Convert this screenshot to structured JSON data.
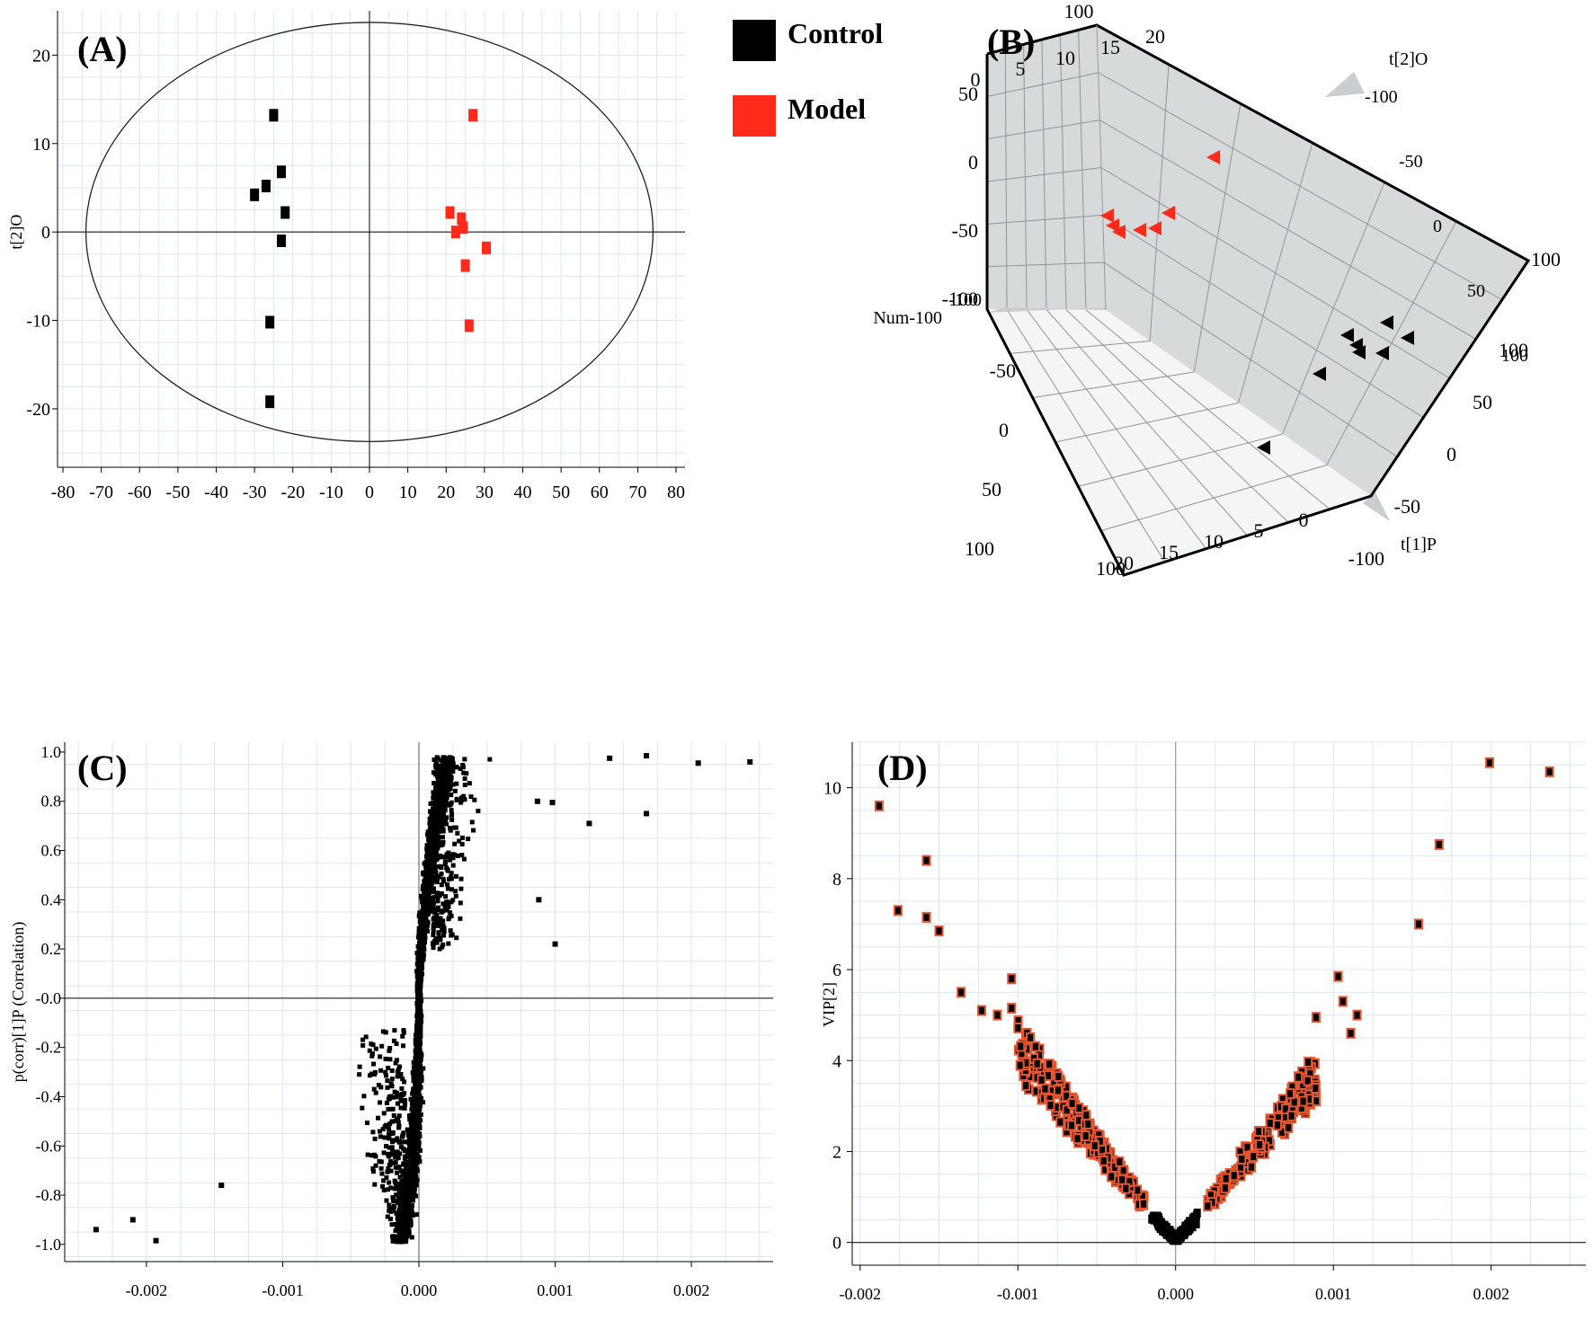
{
  "colors": {
    "control": "#000000",
    "model": "#ff2a1a",
    "vip_edge": "#e8552e",
    "grid": "#dfe6ee",
    "plane": "#d6dadb"
  },
  "panels": {
    "A": {
      "label": "(A)",
      "legend": [
        {
          "name": "Control",
          "color": "#000000"
        },
        {
          "name": "Model",
          "color": "#ff2a1a"
        }
      ]
    },
    "B": {
      "label": "(B)",
      "axis_labels": {
        "t2o": "t[2]O",
        "t1p": "t[1]P",
        "num": "Num"
      }
    },
    "C": {
      "label": "(C)"
    },
    "D": {
      "label": "(D)"
    }
  },
  "chart_data": [
    {
      "panel": "A",
      "type": "scatter",
      "title": "",
      "xlabel": "",
      "ylabel": "t[2]O",
      "xlim": [
        -80,
        80
      ],
      "ylim": [
        -26,
        24
      ],
      "x_ticks": [
        -80,
        -70,
        -60,
        -50,
        -40,
        -30,
        -20,
        -10,
        0,
        10,
        20,
        30,
        40,
        50,
        60,
        70,
        80
      ],
      "y_ticks": [
        -20,
        -10,
        0,
        10,
        20
      ],
      "ellipse": {
        "center": [
          0,
          0
        ],
        "rx": 74,
        "ry": 23.7
      },
      "series": [
        {
          "name": "Control",
          "color": "#000000",
          "points": [
            [
              -25,
              13.2
            ],
            [
              -23,
              6.8
            ],
            [
              -27,
              5.2
            ],
            [
              -30,
              4.2
            ],
            [
              -22,
              2.2
            ],
            [
              -23,
              -1.0
            ],
            [
              -26,
              -10.2
            ],
            [
              -26,
              -19.2
            ]
          ]
        },
        {
          "name": "Model",
          "color": "#ff2a1a",
          "points": [
            [
              27,
              13.2
            ],
            [
              21,
              2.2
            ],
            [
              24,
              1.5
            ],
            [
              24.5,
              0.5
            ],
            [
              22.5,
              0.0
            ],
            [
              30.5,
              -1.8
            ],
            [
              25,
              -3.8
            ],
            [
              26,
              -10.6
            ]
          ]
        }
      ]
    },
    {
      "panel": "B",
      "type": "scatter",
      "title": "",
      "axes": [
        "t[1]P",
        "t[2]O",
        "Num"
      ],
      "t2o_ticks": [
        "-100",
        "-50",
        "0",
        "50",
        "100"
      ],
      "t1p_ticks": [
        "-100",
        "-50",
        "0",
        "50",
        "100"
      ],
      "num_ticks": [
        "0",
        "5",
        "10",
        "15",
        "20"
      ],
      "top_left_ticks": [
        "50",
        "0",
        "-50",
        "-100"
      ],
      "lower_left_ticks": [
        "-50",
        "0",
        "50",
        "100"
      ],
      "corner_labels": {
        "top": "100",
        "num_end": "-100",
        "num_label_end": "-100",
        "right": "100",
        "bottom": "100"
      },
      "series": [
        {
          "name": "Model",
          "color": "#ff2a1a",
          "count": 7
        },
        {
          "name": "Control",
          "color": "#000000",
          "count": 8
        }
      ]
    },
    {
      "panel": "C",
      "type": "scatter",
      "title": "",
      "xlabel": "",
      "ylabel": "p(corr)[1]P (Correlation)",
      "xlim": [
        -0.0026,
        0.0026
      ],
      "ylim": [
        -1.07,
        1.04
      ],
      "x_ticks": [
        "-0.002",
        "-0.001",
        "0.000",
        "0.001",
        "0.002"
      ],
      "y_ticks": [
        "-1.0",
        "-0.8",
        "-0.6",
        "-0.4",
        "-0.2",
        "-0.0",
        "0.2",
        "0.4",
        "0.6",
        "0.8",
        "1.0"
      ],
      "highlighted_points": [
        [
          -0.00237,
          -0.94
        ],
        [
          -0.0021,
          -0.9
        ],
        [
          -0.00193,
          -0.985
        ],
        [
          -0.00145,
          -0.76
        ],
        [
          0.0014,
          0.975
        ],
        [
          0.00167,
          0.985
        ],
        [
          0.00205,
          0.955
        ],
        [
          0.00243,
          0.96
        ],
        [
          0.00167,
          0.75
        ],
        [
          0.00125,
          0.71
        ],
        [
          0.001,
          0.22
        ],
        [
          0.00088,
          0.4
        ],
        [
          0.00098,
          0.795
        ],
        [
          0.00087,
          0.8
        ]
      ],
      "cloud": "approximately 3000 variables concentrated near x = 0 following an S-shaped curve from (-0.0002, -1.0) to (0.0004, 1.0)"
    },
    {
      "panel": "D",
      "type": "scatter",
      "title": "",
      "xlabel": "",
      "ylabel": "VIP[2]",
      "xlim": [
        -0.00205,
        0.0026
      ],
      "ylim": [
        -0.5,
        11
      ],
      "x_ticks": [
        "-0.002",
        "-0.001",
        "0.000",
        "0.001",
        "0.002"
      ],
      "y_ticks": [
        "0",
        "2",
        "4",
        "6",
        "8",
        "10"
      ],
      "highlighted_points": [
        [
          -0.00188,
          9.6
        ],
        [
          -0.00176,
          7.3
        ],
        [
          -0.00158,
          8.4
        ],
        [
          -0.00158,
          7.15
        ],
        [
          -0.0015,
          6.85
        ],
        [
          -0.00136,
          5.5
        ],
        [
          -0.00123,
          5.1
        ],
        [
          -0.00113,
          5.0
        ],
        [
          -0.00104,
          5.8
        ],
        [
          -0.00104,
          5.15
        ],
        [
          0.00199,
          10.55
        ],
        [
          0.00237,
          10.35
        ],
        [
          0.00167,
          8.75
        ],
        [
          0.00154,
          7.0
        ],
        [
          0.00103,
          5.85
        ],
        [
          0.00106,
          5.3
        ],
        [
          0.00115,
          5.0
        ],
        [
          0.00089,
          4.95
        ],
        [
          0.00111,
          4.6
        ]
      ],
      "cloud": "V-shaped distribution of about 3000 variables with VIP rising from 0 at x = 0 to about 4 at x = ±0.001"
    }
  ]
}
